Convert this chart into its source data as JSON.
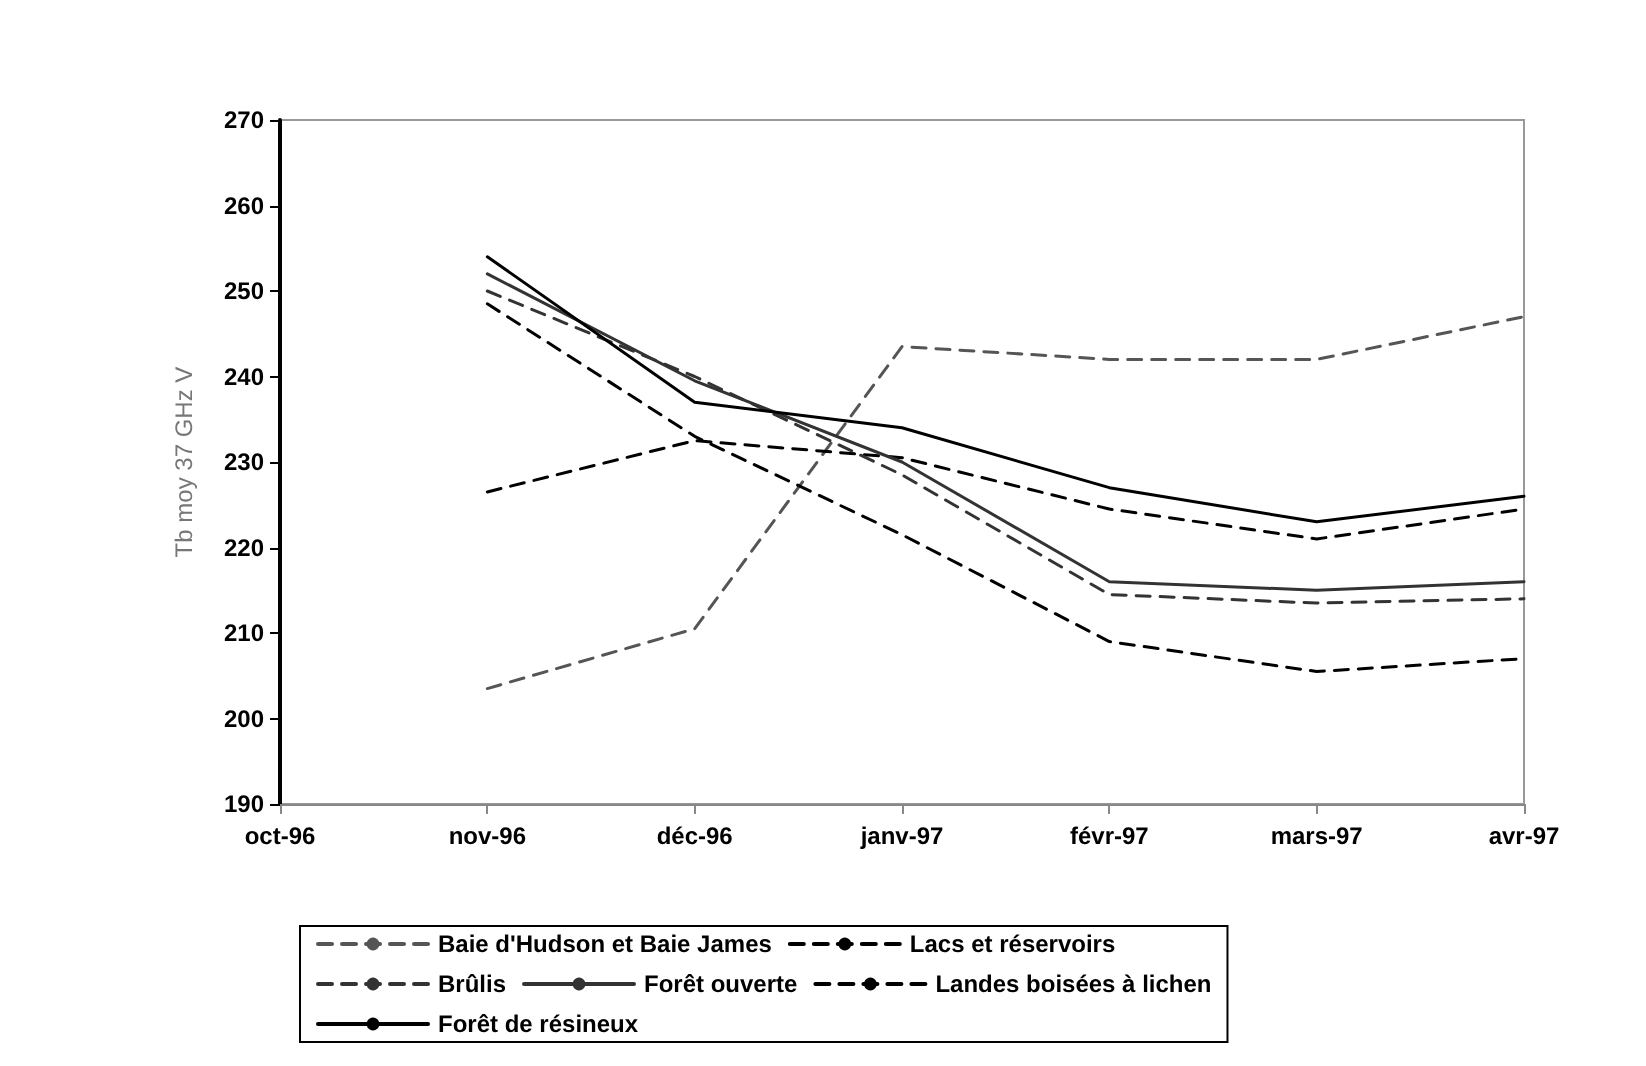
{
  "chart_data": {
    "type": "line",
    "ylabel": "Tb moy 37 GHz V",
    "categories": [
      "oct-96",
      "nov-96",
      "déc-96",
      "janv-97",
      "févr-97",
      "mars-97",
      "avr-97"
    ],
    "ylim": [
      190,
      270
    ],
    "yticks": [
      190,
      200,
      210,
      220,
      230,
      240,
      250,
      260,
      270
    ],
    "grid": false,
    "legend": "bottom",
    "marker": "none",
    "series": [
      {
        "name": "Baie d'Hudson et Baie James",
        "color": "#555555",
        "line_style": "dashed",
        "values": [
          null,
          203.5,
          210.5,
          243.5,
          242,
          242,
          247
        ]
      },
      {
        "name": "Lacs et réservoirs",
        "color": "#000000",
        "line_style": "dashed",
        "values": [
          null,
          226.5,
          232.5,
          230.5,
          224.5,
          221,
          224.5
        ]
      },
      {
        "name": "Brûlis",
        "color": "#333333",
        "line_style": "dashed",
        "values": [
          null,
          250,
          240,
          228.5,
          214.5,
          213.5,
          214
        ]
      },
      {
        "name": "Forêt ouverte",
        "color": "#333333",
        "line_style": "solid",
        "values": [
          null,
          252,
          239.5,
          230,
          216,
          215,
          216
        ]
      },
      {
        "name": "Landes boisées à lichen",
        "color": "#000000",
        "line_style": "dashed",
        "values": [
          null,
          248.5,
          233,
          221.5,
          209,
          205.5,
          207
        ]
      },
      {
        "name": "Forêt de résineux",
        "color": "#000000",
        "line_style": "solid",
        "values": [
          null,
          254,
          237,
          234,
          227,
          223,
          226
        ]
      }
    ]
  }
}
